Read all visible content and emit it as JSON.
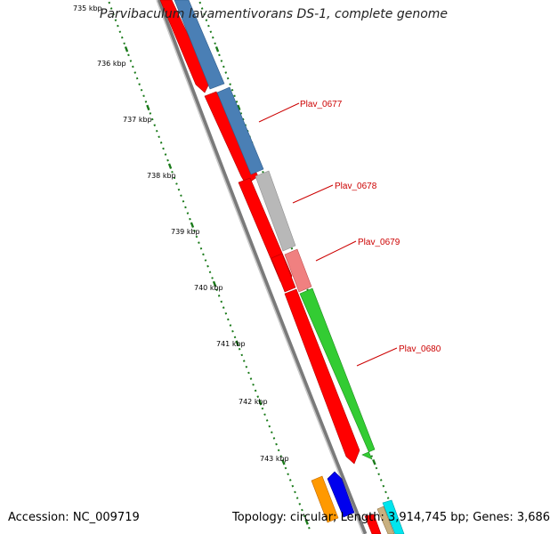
{
  "title": "Parvibaculum lavamentivorans DS-1, complete genome",
  "footer": {
    "accession": "Accession: NC_009719",
    "summary": "Topology: circular; Length: 3,914,745 bp; Genes: 3,686"
  },
  "colors": {
    "backbone": "#808080",
    "tick": "#1a7a1a",
    "label_red": "#cc0000",
    "gene_red": "#ff0000",
    "gene_blue": "#4a7fb5",
    "gene_gray": "#b8b8b8",
    "gene_pink": "#f08080",
    "gene_green": "#33cc33",
    "gene_orange": "#ff9900",
    "gene_darkblue": "#0000ee",
    "gene_cyan": "#00e5ee"
  },
  "scale_labels": [
    "735 kbp",
    "736 kbp",
    "737 kbp",
    "738 kbp",
    "739 kbp",
    "740 kbp",
    "741 kbp",
    "742 kbp",
    "743 kbp"
  ],
  "gene_labels": [
    "Plav_0677",
    "Plav_0678",
    "Plav_0679",
    "Plav_0680"
  ]
}
